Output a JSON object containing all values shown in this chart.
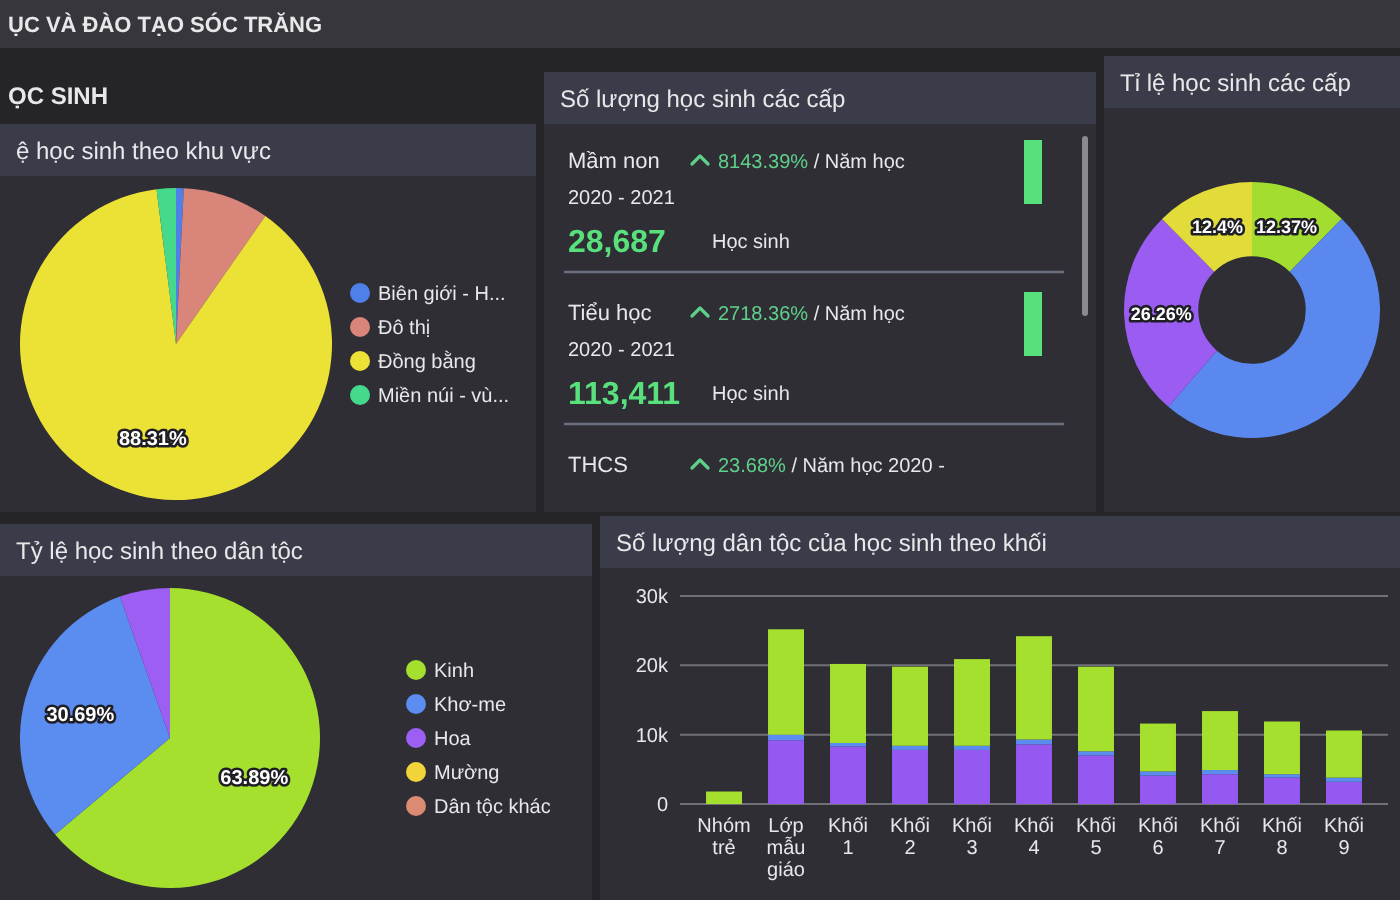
{
  "chart_data": [
    {
      "type": "other",
      "title": "ỤC VÀ ĐÀO TẠO SÓC TRĂNG",
      "subtitle": "ỌC SINH"
    },
    {
      "type": "pie",
      "title": "ệ học sinh theo khu vực",
      "categories": [
        "Biên giới - H...",
        "Đô thị",
        "Đồng bằng",
        "Miền núi - vù..."
      ],
      "values": [
        0.8,
        8.9,
        88.31,
        1.99
      ],
      "colors": [
        "#4f7fe8",
        "#d9857a",
        "#ece236",
        "#45d98c"
      ],
      "value_labels": [
        null,
        null,
        "88.31%",
        null
      ],
      "legend": "right"
    },
    {
      "type": "other",
      "title": "Số lượng học sinh các cấp",
      "annotations": [
        "Mầm non",
        "8143.39%",
        "/ Năm học",
        "2020 - 2021",
        "28,687",
        "Học sinh",
        "Tiểu học",
        "2718.36%",
        "/ Năm học",
        "2020 - 2021",
        "113,411",
        "Học sinh",
        "THCS",
        "23.68%",
        "/ Năm học 2020 -"
      ]
    },
    {
      "type": "donut",
      "title": "Tỉ lệ học sinh các cấp",
      "values": [
        12.37,
        48.97,
        26.26,
        12.4
      ],
      "colors": [
        "#a3dd2f",
        "#5a88ee",
        "#9b5cf2",
        "#e2dc3a"
      ],
      "value_labels": [
        "12.37%",
        null,
        "26.26%",
        "12.4%"
      ]
    },
    {
      "type": "pie",
      "title": "Tỷ lệ học sinh theo dân tộc",
      "categories": [
        "Kinh",
        "Khơ-me",
        "Hoa",
        "Mường",
        "Dân tộc khác"
      ],
      "values": [
        63.89,
        30.69,
        5.42,
        null,
        null
      ],
      "colors": [
        "#a5e02e",
        "#5b8cf0",
        "#9d5ef3",
        "#f1d43a",
        "#dc8a72"
      ],
      "value_labels": [
        "63.89%",
        "30.69%",
        null,
        null,
        null
      ],
      "legend": "right"
    },
    {
      "type": "bar",
      "title": "Số lượng dân tộc của học sinh theo khối",
      "categories": [
        "Nhóm trẻ",
        "Lớp mẫu giáo",
        "Khối 1",
        "Khối 2",
        "Khối 3",
        "Khối 4",
        "Khối 5",
        "Khối 6",
        "Khối 7",
        "Khối 8",
        "Khối 9"
      ],
      "stacked": true,
      "series": [
        {
          "color": "#9558f0",
          "values": [
            0,
            9200,
            8300,
            7800,
            7800,
            8600,
            7000,
            4100,
            4300,
            3800,
            3200
          ]
        },
        {
          "color": "#5b8cf0",
          "values": [
            0,
            800,
            500,
            600,
            600,
            700,
            600,
            600,
            600,
            500,
            600
          ]
        },
        {
          "color": "#a6e02e",
          "values": [
            1800,
            15200,
            11400,
            11400,
            12500,
            14900,
            12200,
            6900,
            8500,
            7600,
            6800
          ]
        }
      ],
      "ylim": [
        0,
        30000
      ],
      "yticks": [
        0,
        {
          "value": 10000,
          "label": "10k"
        },
        {
          "value": 20000,
          "label": "20k"
        },
        {
          "value": 30000,
          "label": "30k"
        }
      ],
      "grid": "y"
    }
  ]
}
